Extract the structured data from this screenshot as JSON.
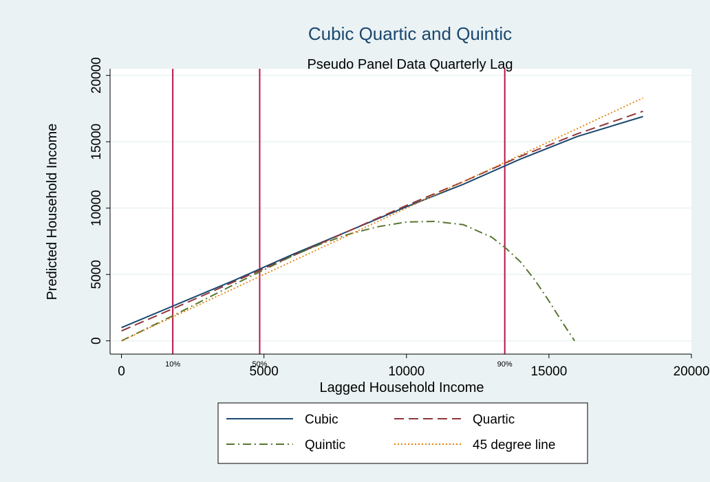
{
  "chart_data": {
    "type": "line",
    "title": "Cubic Quartic and Quintic",
    "subtitle": "Pseudo Panel Data Quarterly Lag",
    "xlabel": "Lagged Household Income",
    "ylabel": "Predicted Household Income",
    "xlim": [
      -400,
      20000
    ],
    "ylim": [
      -1000,
      20500
    ],
    "x_ticks": [
      0,
      5000,
      10000,
      15000,
      20000
    ],
    "x_tick_labels": [
      "0",
      "5000",
      "10000",
      "15000",
      "20000"
    ],
    "y_ticks": [
      0,
      5000,
      10000,
      15000,
      20000
    ],
    "y_tick_labels": [
      "0",
      "5000",
      "10000",
      "15000",
      "20000"
    ],
    "grid": true,
    "legend_position": "bottom",
    "reference_lines": [
      {
        "x": 1800,
        "label": "10%"
      },
      {
        "x": 4850,
        "label": "50%"
      },
      {
        "x": 13450,
        "label": "90%"
      }
    ],
    "series": [
      {
        "name": "Cubic",
        "color": "#1a476f",
        "dash": "solid",
        "x": [
          0,
          2000,
          4000,
          6000,
          8000,
          10000,
          12000,
          14000,
          16000,
          18300
        ],
        "y": [
          1000,
          2800,
          4600,
          6500,
          8300,
          10100,
          11800,
          13700,
          15400,
          16900
        ]
      },
      {
        "name": "Quartic",
        "color": "#90353b",
        "dash": "dashed",
        "x": [
          0,
          2000,
          4000,
          6000,
          8000,
          10000,
          12000,
          14000,
          16000,
          18300
        ],
        "y": [
          750,
          2600,
          4500,
          6400,
          8300,
          10200,
          12000,
          13900,
          15600,
          17300
        ]
      },
      {
        "name": "Quintic",
        "color": "#55752f",
        "dash": "dashdot",
        "x": [
          0,
          1000,
          2000,
          3000,
          4000,
          5000,
          6000,
          7000,
          8000,
          9000,
          10000,
          11000,
          12000,
          13000,
          13500,
          14000,
          14500,
          15000,
          15500,
          15900
        ],
        "y": [
          0,
          1050,
          2100,
          3200,
          4300,
          5350,
          6400,
          7300,
          8050,
          8600,
          8950,
          9000,
          8750,
          7800,
          6950,
          5950,
          4600,
          3000,
          1300,
          0
        ]
      },
      {
        "name": "45 degree line",
        "color": "#e37e00",
        "dash": "dotted",
        "x": [
          0,
          18300
        ],
        "y": [
          0,
          18300
        ]
      }
    ]
  }
}
